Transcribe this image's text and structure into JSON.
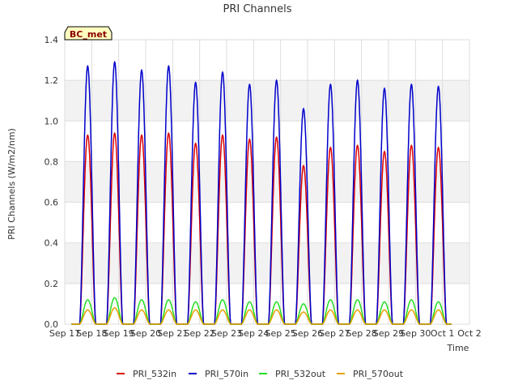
{
  "chart_data": {
    "type": "line",
    "title": "PRI Channels",
    "xlabel": "Time",
    "ylabel": "PRI Channels (W/m2/nm)",
    "badge": "BC_met",
    "ylim": [
      0,
      1.4
    ],
    "yticks": [
      0.0,
      0.2,
      0.4,
      0.6,
      0.8,
      1.0,
      1.2,
      1.4
    ],
    "ytick_labels": [
      "0.0",
      "0.2",
      "0.4",
      "0.6",
      "0.8",
      "1.0",
      "1.2",
      "1.4"
    ],
    "xlim": [
      17,
      32
    ],
    "xticks": [
      17,
      18,
      19,
      20,
      21,
      22,
      23,
      24,
      25,
      26,
      27,
      28,
      29,
      30,
      31,
      32
    ],
    "xtick_labels": [
      "Sep 17",
      "Sep 18",
      "Sep 19",
      "Sep 20",
      "Sep 21",
      "Sep 22",
      "Sep 23",
      "Sep 24",
      "Sep 25",
      "Sep 26",
      "Sep 27",
      "Sep 28",
      "Sep 29",
      "Sep 30",
      "Oct 1",
      "Oct 2"
    ],
    "grid": true,
    "legend_position": "bottom-center",
    "day_centers": [
      17.85,
      18.85,
      19.85,
      20.85,
      21.85,
      22.85,
      23.85,
      24.85,
      25.85,
      26.85,
      27.85,
      28.85,
      29.85,
      30.85
    ],
    "series": [
      {
        "name": "PRI_532in",
        "color": "#dd0000",
        "daily_peaks": [
          0.93,
          0.94,
          0.93,
          0.94,
          0.89,
          0.93,
          0.91,
          0.92,
          0.78,
          0.87,
          0.88,
          0.85,
          0.88,
          0.87
        ]
      },
      {
        "name": "PRI_570in",
        "color": "#0000cc",
        "daily_peaks": [
          1.27,
          1.29,
          1.25,
          1.27,
          1.19,
          1.24,
          1.18,
          1.2,
          1.06,
          1.18,
          1.2,
          1.16,
          1.18,
          1.17
        ]
      },
      {
        "name": "PRI_532out",
        "color": "#22dd22",
        "daily_peaks": [
          0.12,
          0.13,
          0.12,
          0.12,
          0.11,
          0.12,
          0.11,
          0.11,
          0.1,
          0.12,
          0.12,
          0.11,
          0.12,
          0.11
        ]
      },
      {
        "name": "PRI_570out",
        "color": "#e8a000",
        "daily_peaks": [
          0.07,
          0.08,
          0.07,
          0.07,
          0.07,
          0.07,
          0.07,
          0.07,
          0.06,
          0.07,
          0.07,
          0.07,
          0.07,
          0.07
        ]
      }
    ]
  }
}
